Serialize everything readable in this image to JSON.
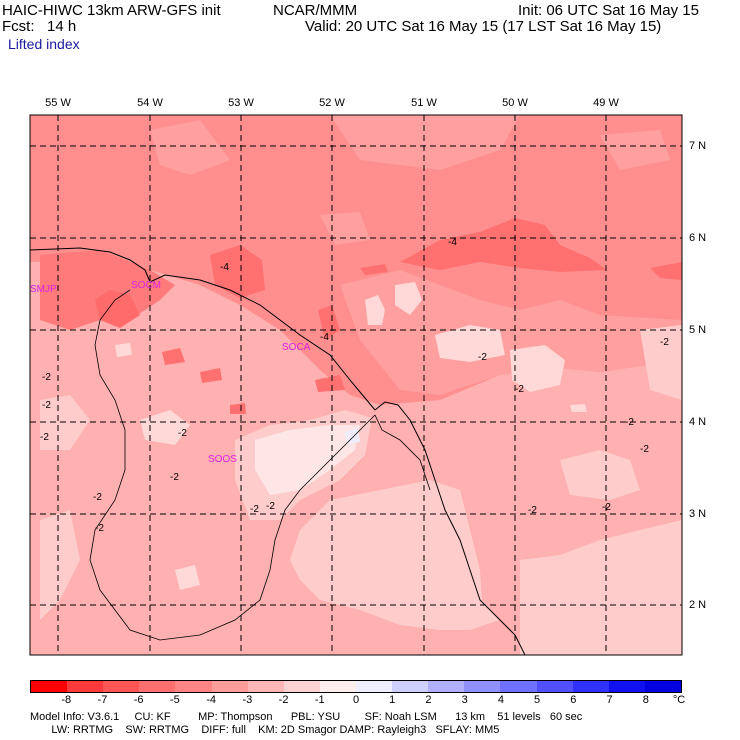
{
  "header": {
    "model": "HAIC-HIWC 13km ARW-GFS init",
    "org": "NCAR/MMM",
    "init": "Init: 06 UTC Sat 16 May 15",
    "fcst": "Fcst:   14 h",
    "valid": "Valid: 20 UTC Sat 16 May 15 (17 LST Sat 16 May 15)",
    "field": "Lifted index"
  },
  "map": {
    "lon_labels": [
      "55 W",
      "54 W",
      "53 W",
      "52 W",
      "51 W",
      "50 W",
      "49 W"
    ],
    "lat_labels": [
      "7 N",
      "6 N",
      "5 N",
      "4 N",
      "3 N",
      "2 N"
    ],
    "stations": [
      "SMJP",
      "SOCM",
      "SOCA",
      "SOOS"
    ],
    "contour_labels": [
      "-4",
      "-4",
      "-4",
      "-2",
      "-2",
      "-2",
      "-2",
      "-2",
      "-2",
      "-2",
      "-2",
      "-2",
      "-2",
      "-2",
      "-2",
      "-2",
      "-2",
      "-2",
      "-2"
    ]
  },
  "colorbar": {
    "unit": "°C",
    "ticks": [
      "-8",
      "-7",
      "-6",
      "-5",
      "-4",
      "-3",
      "-2",
      "-1",
      "0",
      "1",
      "2",
      "3",
      "4",
      "5",
      "6",
      "7",
      "8"
    ],
    "colors": [
      "#ff1a1a",
      "#ff3a3a",
      "#ff5555",
      "#ff6f6f",
      "#ff8585",
      "#ff9d9d",
      "#ffb6b6",
      "#ffd3d3",
      "#ffeeee",
      "#eeeeff",
      "#d0d0ff",
      "#b0b0ff",
      "#9090ff",
      "#7070ff",
      "#5050ff",
      "#3030ff",
      "#1010f0"
    ]
  },
  "footer": {
    "line1": "Model Info: V3.6.1     CU: KF         MP: Thompson      PBL: YSU        SF: Noah LSM      13 km    51 levels   60 sec",
    "line2": "       LW: RRTMG    SW: RRTMG    DIFF: full    KM: 2D Smagor DAMP: Rayleigh3   SFLAY: MM5"
  }
}
